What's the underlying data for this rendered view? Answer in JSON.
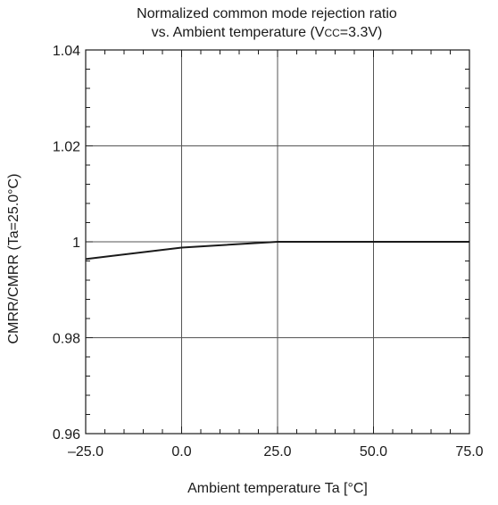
{
  "chart_data": {
    "type": "line",
    "title_line1": "Normalized common mode rejection ratio",
    "title_line2_prefix": "vs. Ambient temperature (V",
    "title_line2_sub": "CC",
    "title_line2_suffix": "=3.3V)",
    "xlabel": "Ambient temperature Ta [°C]",
    "ylabel": "CMRR/CMRR (Ta=25.0°C)",
    "xlim": [
      -25,
      75
    ],
    "ylim": [
      0.96,
      1.04
    ],
    "x_tick_labels": [
      "–25.0",
      "0.0",
      "25.0",
      "50.0",
      "75.0"
    ],
    "x_ticks": [
      -25,
      0,
      25,
      50,
      75
    ],
    "y_tick_labels": [
      "0.96",
      "0.98",
      "1",
      "1.02",
      "1.04"
    ],
    "y_ticks": [
      0.96,
      0.98,
      1.0,
      1.02,
      1.04
    ],
    "grid": true,
    "series": [
      {
        "x": [
          -25,
          0,
          25,
          50,
          75
        ],
        "y": [
          0.9964,
          0.9988,
          1.0,
          1.0,
          1.0
        ]
      }
    ],
    "colors": {
      "line": "#1a1a1a",
      "grid": "#555555",
      "frame": "#1a1a1a"
    }
  }
}
